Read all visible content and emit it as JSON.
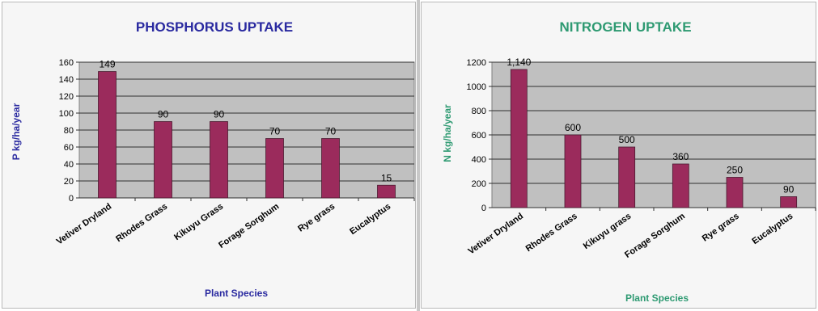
{
  "chart_data": [
    {
      "type": "bar",
      "title": "PHOSPHORUS UPTAKE",
      "xlabel": "Plant Species",
      "ylabel": "P kg/ha/year",
      "categories": [
        "Vetiver Dryland",
        "Rhodes Grass",
        "Kikuyu Grass",
        "Forage Sorghum",
        "Rye grass",
        "Eucalyptus"
      ],
      "values": [
        149,
        90,
        90,
        70,
        70,
        15
      ],
      "data_labels": [
        "149",
        "90",
        "90",
        "70",
        "70",
        "15"
      ],
      "yticks": [
        "0",
        "20",
        "40",
        "60",
        "80",
        "100",
        "120",
        "140",
        "160"
      ],
      "ylim": [
        0,
        160
      ],
      "grid": true,
      "legend": "none",
      "colors": {
        "title": "#2a2aa0",
        "axis_label": "#2a2aa0",
        "bar": "#9b2b5c",
        "plot_bg": "#c0c0c0"
      }
    },
    {
      "type": "bar",
      "title": "NITROGEN UPTAKE",
      "xlabel": "Plant Species",
      "ylabel": "N kg/ha/year",
      "categories": [
        "Vetiver Dryland",
        "Rhodes Grass",
        "Kikuyu grass",
        "Forage Sorghum",
        "Rye grass",
        "Eucalyptus"
      ],
      "values": [
        1140,
        600,
        500,
        360,
        250,
        90
      ],
      "data_labels": [
        "1,140",
        "600",
        "500",
        "360",
        "250",
        "90"
      ],
      "yticks": [
        "0",
        "200",
        "400",
        "600",
        "800",
        "1000",
        "1200"
      ],
      "ylim": [
        0,
        1200
      ],
      "grid": true,
      "legend": "none",
      "colors": {
        "title": "#2e9a72",
        "axis_label": "#2e9a72",
        "bar": "#9b2b5c",
        "plot_bg": "#c0c0c0"
      }
    }
  ]
}
